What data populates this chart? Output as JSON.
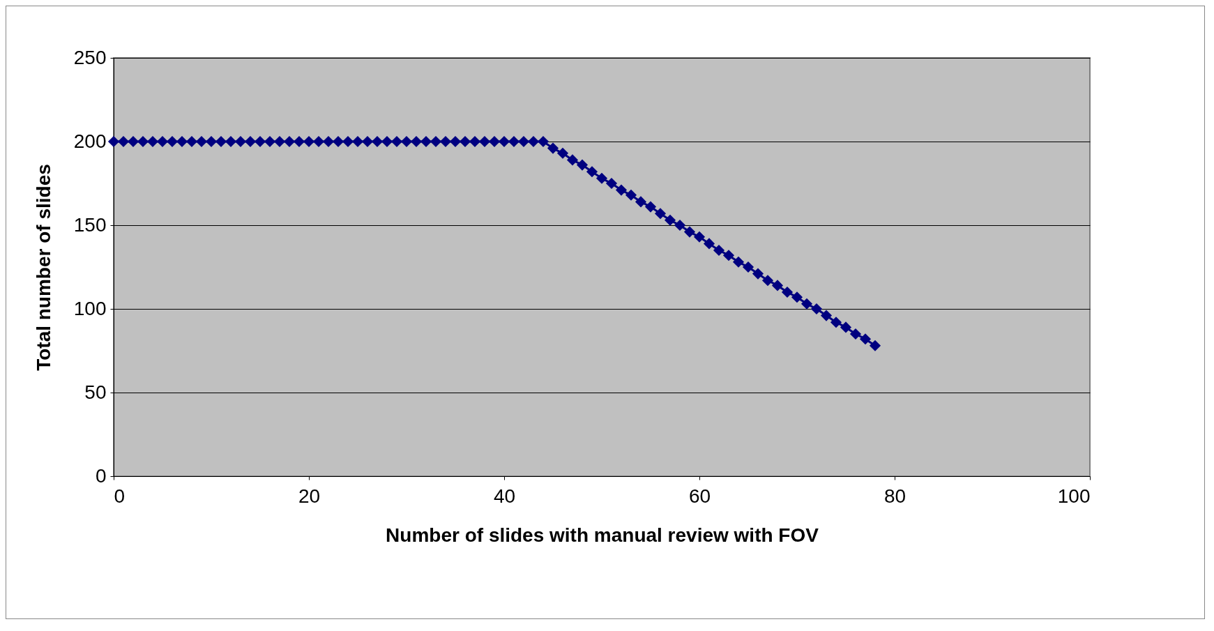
{
  "chart_data": {
    "type": "line",
    "xlabel": "Number of slides with manual review with FOV",
    "ylabel": "Total number of slides",
    "x": [
      0,
      1,
      2,
      3,
      4,
      5,
      6,
      7,
      8,
      9,
      10,
      11,
      12,
      13,
      14,
      15,
      16,
      17,
      18,
      19,
      20,
      21,
      22,
      23,
      24,
      25,
      26,
      27,
      28,
      29,
      30,
      31,
      32,
      33,
      34,
      35,
      36,
      37,
      38,
      39,
      40,
      41,
      42,
      43,
      44,
      45,
      46,
      47,
      48,
      49,
      50,
      51,
      52,
      53,
      54,
      55,
      56,
      57,
      58,
      59,
      60,
      61,
      62,
      63,
      64,
      65,
      66,
      67,
      68,
      69,
      70,
      71,
      72,
      73,
      74,
      75,
      76,
      77,
      78
    ],
    "series": [
      {
        "color": "#000080",
        "values": [
          200,
          200,
          200,
          200,
          200,
          200,
          200,
          200,
          200,
          200,
          200,
          200,
          200,
          200,
          200,
          200,
          200,
          200,
          200,
          200,
          200,
          200,
          200,
          200,
          200,
          200,
          200,
          200,
          200,
          200,
          200,
          200,
          200,
          200,
          200,
          200,
          200,
          200,
          200,
          200,
          200,
          200,
          200,
          200,
          200,
          196,
          193,
          189,
          186,
          182,
          178,
          175,
          171,
          168,
          164,
          161,
          157,
          153,
          150,
          146,
          143,
          139,
          135,
          132,
          128,
          125,
          121,
          117,
          114,
          110,
          107,
          103,
          100,
          96,
          92,
          89,
          85,
          82,
          78
        ]
      }
    ],
    "xlim": [
      0,
      100
    ],
    "xticks": [
      0,
      20,
      40,
      60,
      80,
      100
    ],
    "ylim": [
      0,
      250
    ],
    "yticks": [
      0,
      50,
      100,
      150,
      200,
      250
    ],
    "grid": "y",
    "marker": "diamond",
    "line_style": "solid"
  }
}
